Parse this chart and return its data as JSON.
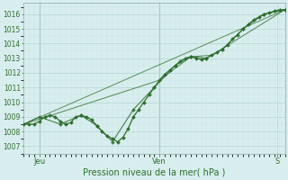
{
  "xlabel": "Pression niveau de la mer( hPa )",
  "bg_color": "#d8eeee",
  "grid_major_color": "#b8d8d8",
  "grid_minor_color": "#c8e4e4",
  "line_color": "#2d6e2d",
  "ylim": [
    1006.5,
    1016.75
  ],
  "xlim": [
    0,
    100
  ],
  "yticks": [
    1007,
    1008,
    1009,
    1010,
    1011,
    1012,
    1013,
    1014,
    1015,
    1016
  ],
  "xtick_labels": [
    "Jeu",
    "Ven",
    "S"
  ],
  "xtick_positions": [
    6,
    52,
    97
  ],
  "vlines": [
    6,
    52
  ],
  "line1_x": [
    0,
    2,
    4,
    6,
    8,
    10,
    12,
    14,
    16,
    18,
    20,
    22,
    24,
    26,
    28,
    30,
    32,
    34,
    36,
    38,
    40,
    42,
    44,
    46,
    48,
    50,
    52,
    54,
    56,
    58,
    60,
    62,
    64,
    66,
    68,
    70,
    72,
    74,
    76,
    78,
    80,
    82,
    84,
    86,
    88,
    90,
    92,
    94,
    96,
    98,
    100
  ],
  "line1_y": [
    1008.5,
    1008.5,
    1008.5,
    1008.7,
    1009.0,
    1009.1,
    1009.0,
    1008.7,
    1008.5,
    1008.6,
    1009.0,
    1009.1,
    1009.0,
    1008.8,
    1008.4,
    1008.0,
    1007.7,
    1007.5,
    1007.3,
    1007.6,
    1008.2,
    1009.0,
    1009.5,
    1010.0,
    1010.5,
    1011.0,
    1011.5,
    1011.9,
    1012.2,
    1012.5,
    1012.8,
    1013.0,
    1013.1,
    1013.0,
    1012.9,
    1013.0,
    1013.2,
    1013.4,
    1013.6,
    1013.9,
    1014.3,
    1014.6,
    1015.0,
    1015.3,
    1015.6,
    1015.8,
    1016.0,
    1016.1,
    1016.2,
    1016.3,
    1016.3
  ],
  "line2_x": [
    0,
    6,
    14,
    22,
    28,
    34,
    42,
    50,
    58,
    64,
    70,
    76,
    84,
    92,
    100
  ],
  "line2_y": [
    1008.5,
    1009.0,
    1008.5,
    1009.1,
    1008.4,
    1007.3,
    1009.5,
    1011.0,
    1012.5,
    1013.1,
    1013.0,
    1013.6,
    1015.0,
    1016.0,
    1016.3
  ],
  "line3_x": [
    0,
    52,
    64,
    72,
    100
  ],
  "line3_y": [
    1008.5,
    1011.5,
    1013.1,
    1013.2,
    1016.3
  ],
  "line4_x": [
    0,
    100
  ],
  "line4_y": [
    1008.5,
    1016.3
  ],
  "figsize": [
    3.2,
    2.0
  ],
  "dpi": 100
}
